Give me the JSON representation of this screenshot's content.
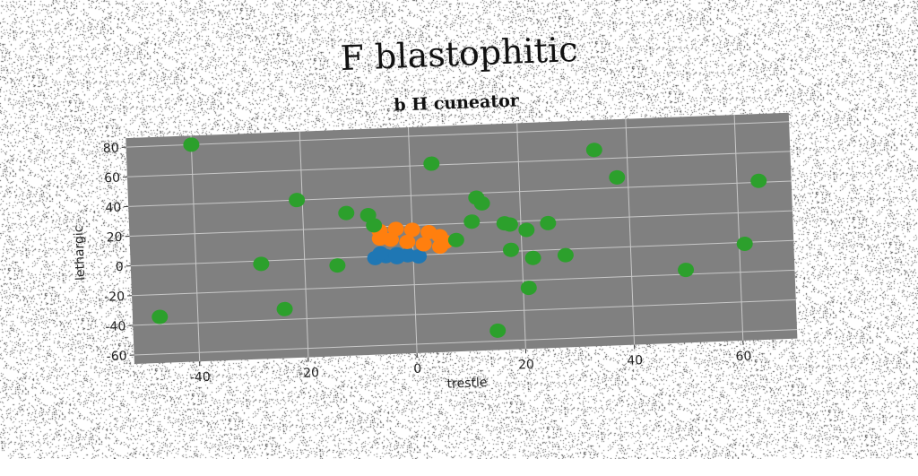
{
  "suptitle": "F blastophitic",
  "chart_data": {
    "type": "scatter",
    "title": "b H cuneator",
    "xlabel": "trestle",
    "ylabel": "lethargic",
    "xlim": [
      -52,
      70
    ],
    "ylim": [
      -66,
      86
    ],
    "xticks": [
      -40,
      -20,
      0,
      20,
      40,
      60
    ],
    "yticks": [
      -60,
      -40,
      -20,
      0,
      20,
      40,
      60,
      80
    ],
    "grid": true,
    "background": "#808080",
    "series": [
      {
        "color": "#1f77b4",
        "points": [
          [
            -7,
            -1
          ],
          [
            -5,
            0
          ],
          [
            -3,
            -1
          ],
          [
            -1,
            0
          ],
          [
            1,
            -1
          ],
          [
            -6,
            2
          ],
          [
            -3,
            1
          ]
        ]
      },
      {
        "color": "#ff7f0e",
        "points": [
          [
            -6,
            17
          ],
          [
            -3,
            18
          ],
          [
            0,
            17
          ],
          [
            3,
            15
          ],
          [
            5,
            12
          ],
          [
            6,
            8
          ],
          [
            5,
            5
          ],
          [
            2,
            7
          ],
          [
            -1,
            9
          ],
          [
            -4,
            11
          ],
          [
            -6,
            12
          ]
        ]
      },
      {
        "color": "#2ca02c",
        "points": [
          [
            -40,
            80
          ],
          [
            4,
            61
          ],
          [
            34,
            66
          ],
          [
            38,
            47
          ],
          [
            64,
            41
          ],
          [
            -21,
            40
          ],
          [
            -12,
            30
          ],
          [
            -8,
            28
          ],
          [
            12,
            37
          ],
          [
            13,
            33
          ],
          [
            -7,
            21
          ],
          [
            11,
            21
          ],
          [
            17,
            19
          ],
          [
            18,
            18
          ],
          [
            25,
            18
          ],
          [
            21,
            14
          ],
          [
            8,
            9
          ],
          [
            18,
            1
          ],
          [
            -28,
            -2
          ],
          [
            -14,
            -5
          ],
          [
            22,
            -5
          ],
          [
            28,
            -4
          ],
          [
            61,
            -1
          ],
          [
            50,
            -17
          ],
          [
            21,
            -25
          ],
          [
            -24,
            -33
          ],
          [
            -47,
            -35
          ],
          [
            15,
            -53
          ]
        ]
      }
    ]
  }
}
